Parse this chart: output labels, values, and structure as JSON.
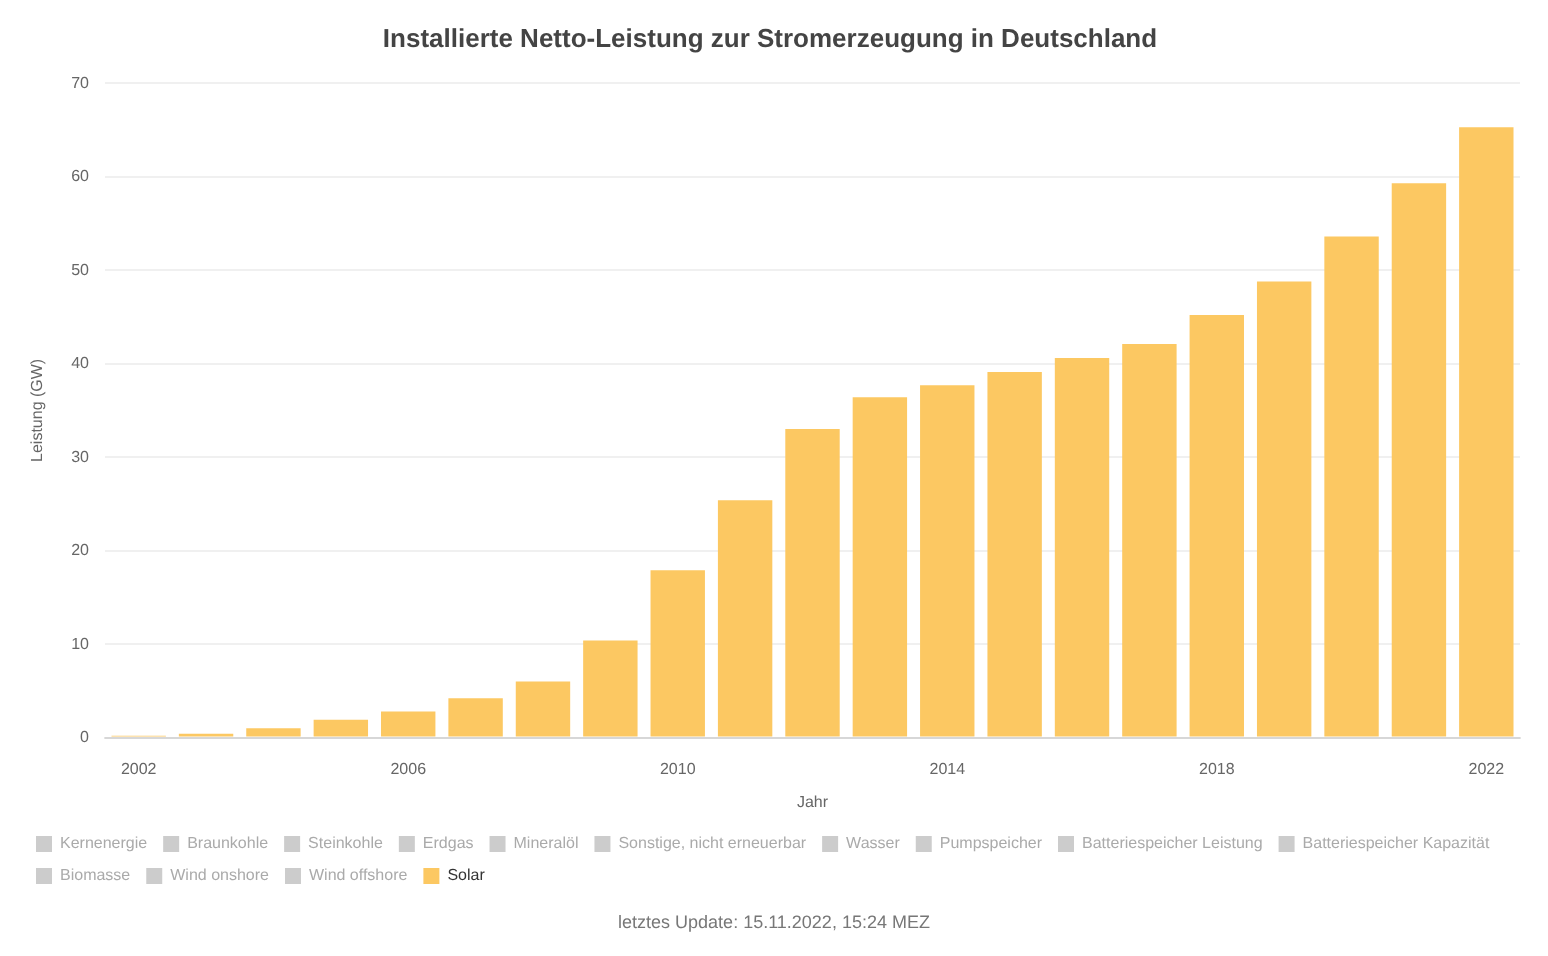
{
  "chart_data": {
    "type": "bar",
    "title": "Installierte Netto-Leistung zur Stromerzeugung in Deutschland",
    "xlabel": "Jahr",
    "ylabel": "Leistung (GW)",
    "categories": [
      "2002",
      null,
      null,
      null,
      "2006",
      null,
      null,
      null,
      "2010",
      null,
      null,
      null,
      "2014",
      null,
      null,
      null,
      "2018",
      null,
      null,
      null,
      "2022"
    ],
    "series": [
      {
        "name": "Kernenergie",
        "color": "#cccccc",
        "values": [
          null,
          null,
          null,
          null,
          null,
          null,
          null,
          null,
          null,
          null,
          null,
          null,
          null,
          null,
          null,
          null,
          null,
          null,
          null,
          null,
          null
        ]
      },
      {
        "name": "Braunkohle",
        "color": "#cccccc",
        "values": [
          null,
          null,
          null,
          null,
          null,
          null,
          null,
          null,
          null,
          null,
          null,
          null,
          null,
          null,
          null,
          null,
          null,
          null,
          null,
          null,
          null
        ]
      },
      {
        "name": "Steinkohle",
        "color": "#cccccc",
        "values": [
          null,
          null,
          null,
          null,
          null,
          null,
          null,
          null,
          null,
          null,
          null,
          null,
          null,
          null,
          null,
          null,
          null,
          null,
          null,
          null,
          null
        ]
      },
      {
        "name": "Erdgas",
        "color": "#cccccc",
        "values": [
          null,
          null,
          null,
          null,
          null,
          null,
          null,
          null,
          null,
          null,
          null,
          null,
          null,
          null,
          null,
          null,
          null,
          null,
          null,
          null,
          null
        ]
      },
      {
        "name": "Mineralöl",
        "color": "#cccccc",
        "values": [
          null,
          null,
          null,
          null,
          null,
          null,
          null,
          null,
          null,
          null,
          null,
          null,
          null,
          null,
          null,
          null,
          null,
          null,
          null,
          null,
          null
        ]
      },
      {
        "name": "Sonstige, nicht erneuerbar",
        "color": "#cccccc",
        "values": [
          null,
          null,
          null,
          null,
          null,
          null,
          null,
          null,
          null,
          null,
          null,
          null,
          null,
          null,
          null,
          null,
          null,
          null,
          null,
          null,
          null
        ]
      },
      {
        "name": "Wasser",
        "color": "#cccccc",
        "values": [
          null,
          null,
          null,
          null,
          null,
          null,
          null,
          null,
          null,
          null,
          null,
          null,
          null,
          null,
          null,
          null,
          null,
          null,
          null,
          null,
          null
        ]
      },
      {
        "name": "Pumpspeicher",
        "color": "#cccccc",
        "values": [
          null,
          null,
          null,
          null,
          null,
          null,
          null,
          null,
          null,
          null,
          null,
          null,
          null,
          null,
          null,
          null,
          null,
          null,
          null,
          null,
          null
        ]
      },
      {
        "name": "Batteriespeicher Leistung",
        "color": "#cccccc",
        "values": [
          null,
          null,
          null,
          null,
          null,
          null,
          null,
          null,
          null,
          null,
          null,
          null,
          null,
          null,
          null,
          null,
          null,
          null,
          null,
          null,
          null
        ]
      },
      {
        "name": "Batteriespeicher Kapazität",
        "color": "#cccccc",
        "values": [
          null,
          null,
          null,
          null,
          null,
          null,
          null,
          null,
          null,
          null,
          null,
          null,
          null,
          null,
          null,
          null,
          null,
          null,
          null,
          null,
          null
        ]
      },
      {
        "name": "Biomasse",
        "color": "#cccccc",
        "values": [
          null,
          null,
          null,
          null,
          null,
          null,
          null,
          null,
          null,
          null,
          null,
          null,
          null,
          null,
          null,
          null,
          null,
          null,
          null,
          null,
          null
        ]
      },
      {
        "name": "Wind onshore",
        "color": "#cccccc",
        "values": [
          null,
          null,
          null,
          null,
          null,
          null,
          null,
          null,
          null,
          null,
          null,
          null,
          null,
          null,
          null,
          null,
          null,
          null,
          null,
          null,
          null
        ]
      },
      {
        "name": "Wind offshore",
        "color": "#cccccc",
        "values": [
          null,
          null,
          null,
          null,
          null,
          null,
          null,
          null,
          null,
          null,
          null,
          null,
          null,
          null,
          null,
          null,
          null,
          null,
          null,
          null,
          null
        ]
      },
      {
        "name": "Solar",
        "color": "#fcc862",
        "values": [
          0.2,
          0.4,
          1.0,
          1.9,
          2.8,
          4.2,
          6.0,
          10.4,
          17.9,
          25.4,
          33.0,
          36.4,
          37.7,
          39.1,
          40.6,
          42.1,
          45.2,
          48.8,
          53.6,
          59.3,
          65.3
        ]
      }
    ],
    "stacked": true,
    "ylim": [
      0,
      70
    ],
    "yticks": [
      0,
      10,
      20,
      30,
      40,
      50,
      60,
      70
    ],
    "grid": "y",
    "legend": "bottom",
    "annotations": [
      "letztes Update: 15.11.2022, 15:24 MEZ"
    ]
  }
}
